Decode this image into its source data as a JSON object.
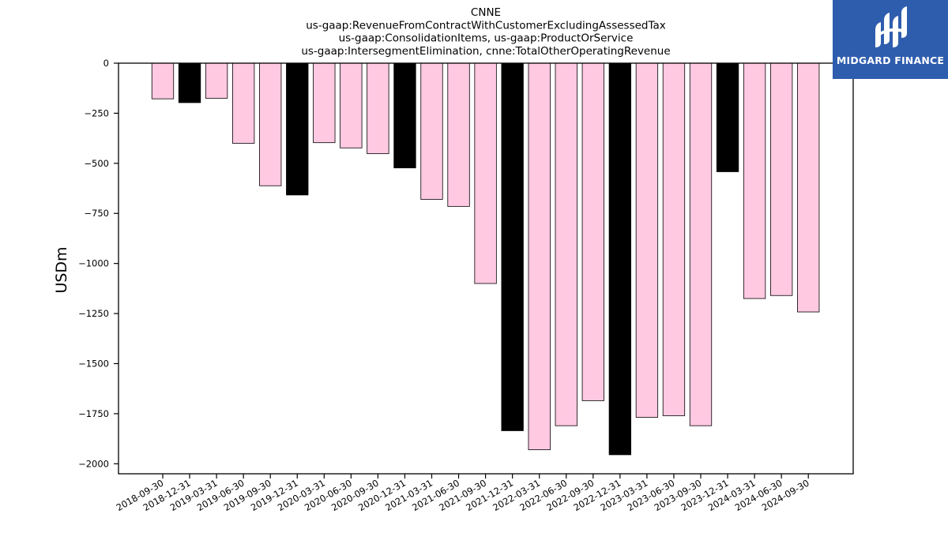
{
  "chart_data": {
    "type": "bar",
    "title_lines": [
      "CNNE",
      "us-gaap:RevenueFromContractWithCustomerExcludingAssessedTax",
      "us-gaap:ConsolidationItems, us-gaap:ProductOrService",
      "us-gaap:IntersegmentElimination, cnne:TotalOtherOperatingRevenue"
    ],
    "ylabel": "USDm",
    "xlabel": "",
    "ylim": [
      -2050,
      0
    ],
    "yticks": [
      0,
      -250,
      -500,
      -750,
      -1000,
      -1250,
      -1500,
      -1750,
      -2000
    ],
    "ytick_labels": [
      "0",
      "−250",
      "−500",
      "−750",
      "−1000",
      "−1250",
      "−1500",
      "−1750",
      "−2000"
    ],
    "grid": false,
    "categories": [
      "2018-09-30",
      "2018-12-31",
      "2019-03-31",
      "2019-06-30",
      "2019-09-30",
      "2019-12-31",
      "2020-03-31",
      "2020-06-30",
      "2020-09-30",
      "2020-12-31",
      "2021-03-31",
      "2021-06-30",
      "2021-09-30",
      "2021-12-31",
      "2022-03-31",
      "2022-06-30",
      "2022-09-30",
      "2022-12-31",
      "2023-03-31",
      "2023-06-30",
      "2023-09-30",
      "2023-12-31",
      "2024-03-31",
      "2024-06-30",
      "2024-09-30"
    ],
    "values": [
      -178,
      -197,
      -175,
      -400,
      -612,
      -658,
      -397,
      -423,
      -452,
      -523,
      -680,
      -715,
      -1100,
      -1835,
      -1930,
      -1810,
      -1685,
      -1955,
      -1768,
      -1760,
      -1810,
      -542,
      -1175,
      -1160,
      -1242
    ],
    "bar_colors": [
      "#ffc9e2",
      "#000000",
      "#ffc9e2",
      "#ffc9e2",
      "#ffc9e2",
      "#000000",
      "#ffc9e2",
      "#ffc9e2",
      "#ffc9e2",
      "#000000",
      "#ffc9e2",
      "#ffc9e2",
      "#ffc9e2",
      "#000000",
      "#ffc9e2",
      "#ffc9e2",
      "#ffc9e2",
      "#000000",
      "#ffc9e2",
      "#ffc9e2",
      "#ffc9e2",
      "#000000",
      "#ffc9e2",
      "#ffc9e2",
      "#ffc9e2"
    ],
    "colors": {
      "quarter_bar": "#ffc9e2",
      "year_end_bar": "#000000",
      "edge": "#000000"
    }
  },
  "logo": {
    "text": "MIDGARD FINANCE",
    "background": "#2f5dae"
  }
}
